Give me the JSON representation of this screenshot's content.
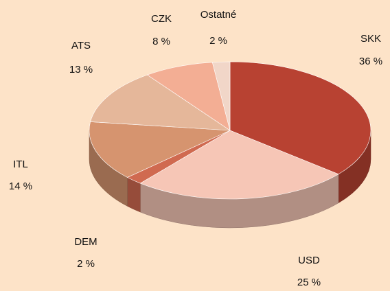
{
  "chart_data": {
    "type": "pie",
    "categories": [
      "SKK",
      "USD",
      "DEM",
      "ITL",
      "ATS",
      "CZK",
      "Ostatné"
    ],
    "values": [
      36,
      25,
      2,
      14,
      13,
      8,
      2
    ],
    "value_labels": [
      "36 %",
      "25 %",
      "2 %",
      "14 %",
      "13 %",
      "8 %",
      "2 %"
    ],
    "colors": [
      "#b84232",
      "#f6c6b6",
      "#d06a50",
      "#d6946f",
      "#e5b79a",
      "#f3ae94",
      "#f1d6c8"
    ]
  }
}
